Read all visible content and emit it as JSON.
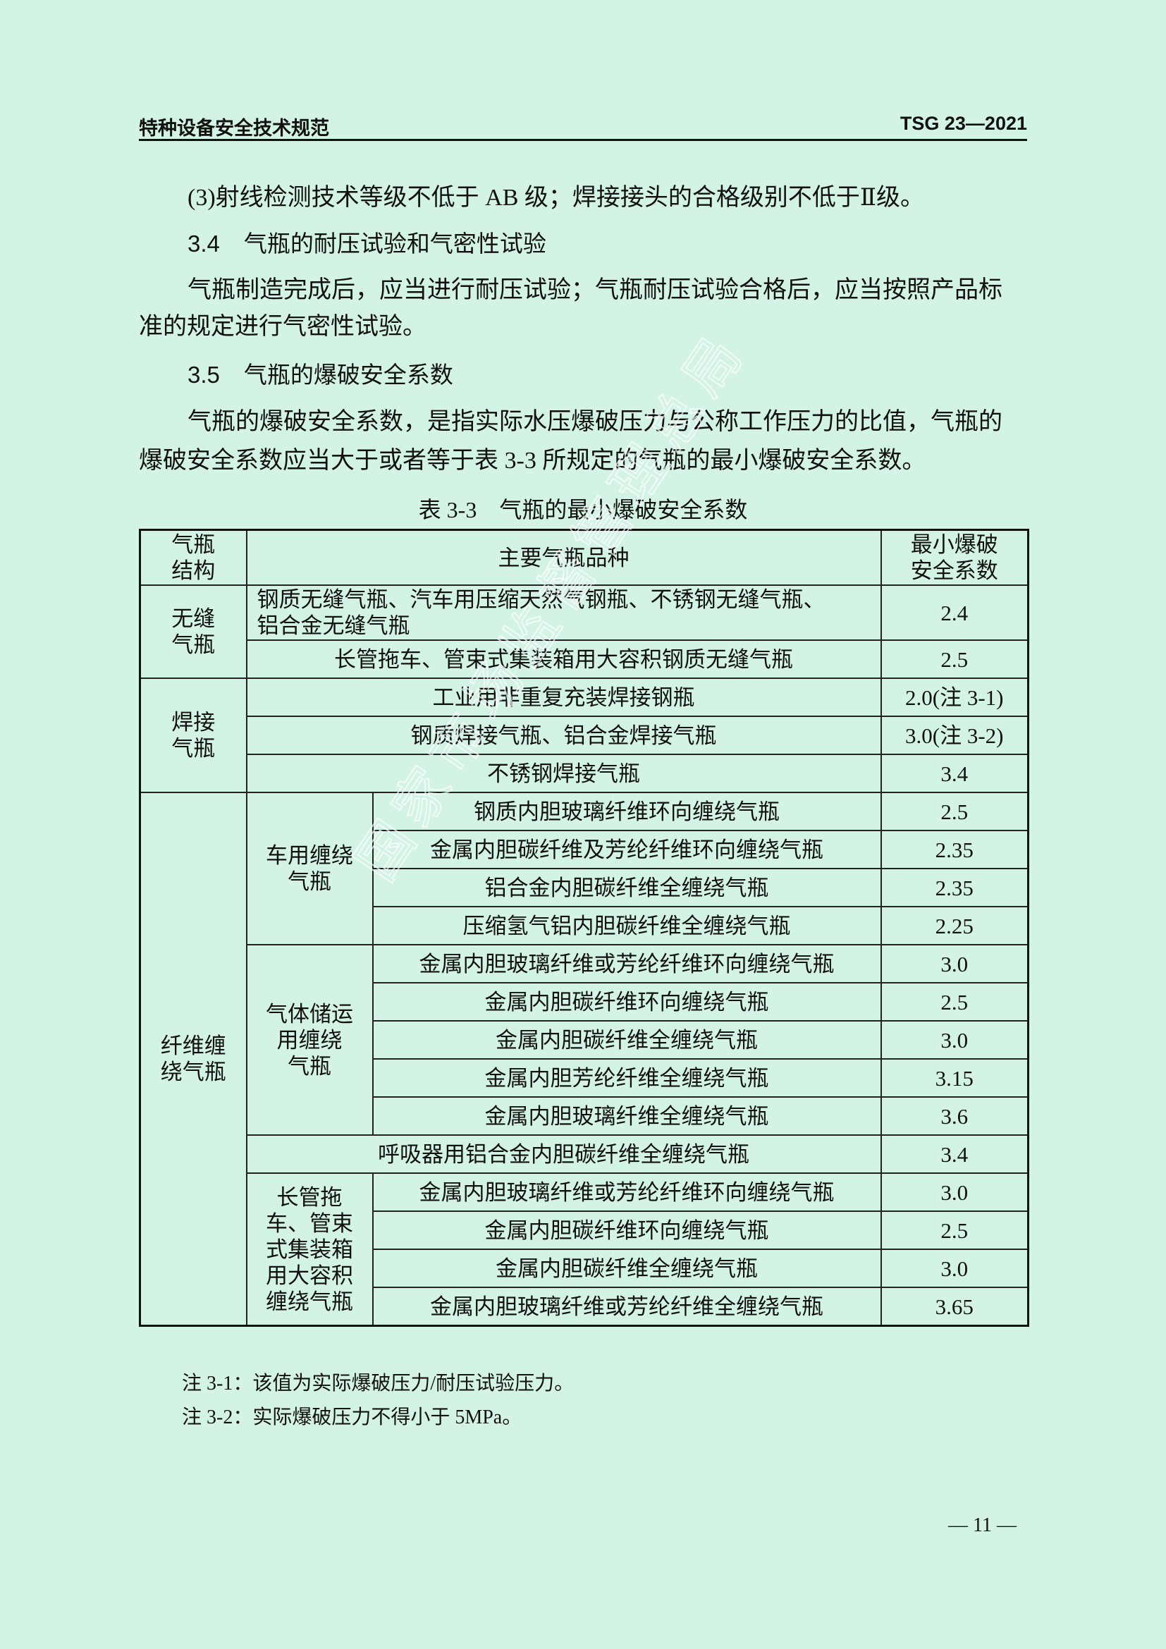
{
  "header": {
    "left": "特种设备安全技术规范",
    "right": "TSG 23—2021"
  },
  "body": {
    "item3": "(3)射线检测技术等级不低于 AB 级；焊接接头的合格级别不低于Ⅱ级。",
    "sec34": {
      "num": "3.4",
      "title": "气瓶的耐压试验和气密性试验"
    },
    "p34": [
      "气瓶制造完成后，应当进行耐压试验；气瓶耐压试验合格后，应当按照产品标",
      "准的规定进行气密性试验。"
    ],
    "sec35": {
      "num": "3.5",
      "title": "气瓶的爆破安全系数"
    },
    "p35": [
      "气瓶的爆破安全系数，是指实际水压爆破压力与公称工作压力的比值，气瓶的",
      "爆破安全系数应当大于或者等于表 3-3 所规定的气瓶的最小爆破安全系数。"
    ]
  },
  "table": {
    "caption": "表 3-3　气瓶的最小爆破安全系数",
    "headers": [
      "气瓶\n结构",
      "主要气瓶品种",
      "最小爆破\n安全系数"
    ],
    "groups": [
      {
        "label": "无缝\n气瓶",
        "rows": [
          {
            "name": "钢质无缝气瓶、汽车用压缩天然气钢瓶、不锈钢无缝气瓶、\n铝合金无缝气瓶",
            "value": "2.4",
            "left": true
          },
          {
            "name": "长管拖车、管束式集装箱用大容积钢质无缝气瓶",
            "value": "2.5"
          }
        ]
      },
      {
        "label": "焊接\n气瓶",
        "rows": [
          {
            "name": "工业用非重复充装焊接钢瓶",
            "value": "2.0(注 3-1)"
          },
          {
            "name": "钢质焊接气瓶、铝合金焊接气瓶",
            "value": "3.0(注 3-2)"
          },
          {
            "name": "不锈钢焊接气瓶",
            "value": "3.4"
          }
        ]
      },
      {
        "label": "纤维缠\n绕气瓶",
        "subgroups": [
          {
            "label": "车用缠绕\n气瓶",
            "rows": [
              {
                "name": "钢质内胆玻璃纤维环向缠绕气瓶",
                "value": "2.5"
              },
              {
                "name": "金属内胆碳纤维及芳纶纤维环向缠绕气瓶",
                "value": "2.35"
              },
              {
                "name": "铝合金内胆碳纤维全缠绕气瓶",
                "value": "2.35"
              },
              {
                "name": "压缩氢气铝内胆碳纤维全缠绕气瓶",
                "value": "2.25"
              }
            ]
          },
          {
            "label": "气体储运\n用缠绕\n气瓶",
            "rows": [
              {
                "name": "金属内胆玻璃纤维或芳纶纤维环向缠绕气瓶",
                "value": "3.0"
              },
              {
                "name": "金属内胆碳纤维环向缠绕气瓶",
                "value": "2.5"
              },
              {
                "name": "金属内胆碳纤维全缠绕气瓶",
                "value": "3.0"
              },
              {
                "name": "金属内胆芳纶纤维全缠绕气瓶",
                "value": "3.15"
              },
              {
                "name": "金属内胆玻璃纤维全缠绕气瓶",
                "value": "3.6"
              }
            ]
          },
          {
            "label": "",
            "rows": [
              {
                "name": "呼吸器用铝合金内胆碳纤维全缠绕气瓶",
                "value": "3.4"
              }
            ]
          },
          {
            "label": "长管拖\n车、管束\n式集装箱\n用大容积\n缠绕气瓶",
            "rows": [
              {
                "name": "金属内胆玻璃纤维或芳纶纤维环向缠绕气瓶",
                "value": "3.0"
              },
              {
                "name": "金属内胆碳纤维环向缠绕气瓶",
                "value": "2.5"
              },
              {
                "name": "金属内胆碳纤维全缠绕气瓶",
                "value": "3.0"
              },
              {
                "name": "金属内胆玻璃纤维或芳纶纤维全缠绕气瓶",
                "value": "3.65"
              }
            ]
          }
        ]
      }
    ]
  },
  "notes": [
    "注 3-1：该值为实际爆破压力/耐压试验压力。",
    "注 3-2：实际爆破压力不得小于 5MPa。"
  ],
  "page_number": "— 11 —",
  "watermark": "国家市场监督管理总局",
  "colors": {
    "background": "#d3f3e5",
    "text": "#111111"
  }
}
